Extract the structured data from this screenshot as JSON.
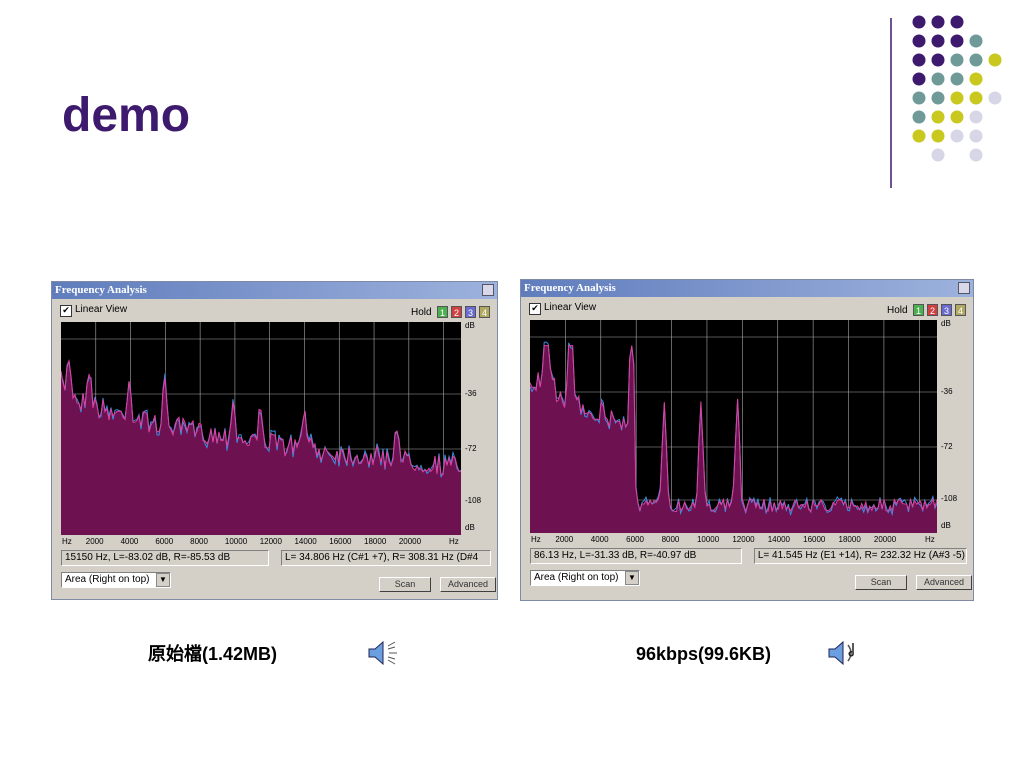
{
  "title": "demo",
  "windows": [
    {
      "title": "Frequency Analysis",
      "checkbox": "Linear View",
      "hold": "Hold",
      "hold_buttons": [
        "1",
        "2",
        "3",
        "4"
      ],
      "y_labels": [
        "dB",
        "-36",
        "-72",
        "-108",
        "dB"
      ],
      "x_labels": [
        "Hz",
        "2000",
        "4000",
        "6000",
        "8000",
        "10000",
        "12000",
        "14000",
        "16000",
        "18000",
        "20000",
        "Hz"
      ],
      "status_left": "15150 Hz, L=-83.02 dB, R=-85.53 dB",
      "status_right": "L= 34.806 Hz (C#1 +7), R= 308.31 Hz (D#4",
      "dropdown": "Area (Right on top)",
      "buttons": [
        "Scan",
        "Advanced"
      ]
    },
    {
      "title": "Frequency Analysis",
      "checkbox": "Linear View",
      "hold": "Hold",
      "hold_buttons": [
        "1",
        "2",
        "3",
        "4"
      ],
      "y_labels": [
        "dB",
        "-36",
        "-72",
        "-108",
        "dB"
      ],
      "x_labels": [
        "Hz",
        "2000",
        "4000",
        "6000",
        "8000",
        "10000",
        "12000",
        "14000",
        "16000",
        "18000",
        "20000",
        "Hz"
      ],
      "status_left": "86.13 Hz, L=-31.33 dB, R=-40.97 dB",
      "status_right": "L= 41.545 Hz (E1 +14), R= 232.32 Hz (A#3 -5)",
      "dropdown": "Area (Right on top)",
      "buttons": [
        "Scan",
        "Advanced"
      ]
    }
  ],
  "captions": [
    "原始檔(1.42MB)",
    "96kbps(99.6KB)"
  ]
}
